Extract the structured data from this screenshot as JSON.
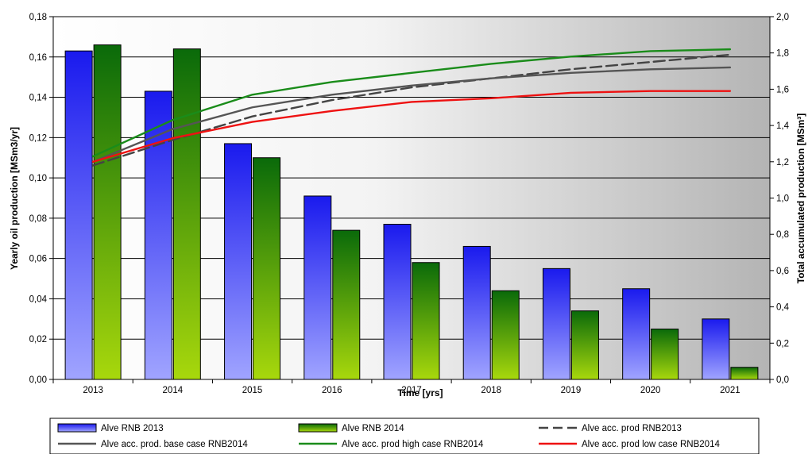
{
  "chart_data": {
    "type": "bar",
    "title": "",
    "xlabel": "Time [yrs]",
    "ylabel": "Yearly oil production [MSm3/yr]",
    "y2label": "Total accumulated production [MSm³]",
    "categories": [
      "2013",
      "2014",
      "2015",
      "2016",
      "2017",
      "2018",
      "2019",
      "2020",
      "2021"
    ],
    "ylim": [
      0,
      0.18
    ],
    "y2lim": [
      0,
      2.0
    ],
    "yticks": [
      "0,00",
      "0,02",
      "0,04",
      "0,06",
      "0,08",
      "0,10",
      "0,12",
      "0,14",
      "0,16",
      "0,18"
    ],
    "y2ticks": [
      "0,0",
      "0,2",
      "0,4",
      "0,6",
      "0,8",
      "1,0",
      "1,2",
      "1,4",
      "1,6",
      "1,8",
      "2,0"
    ],
    "grid": true,
    "legend_position": "bottom",
    "bar_series": [
      {
        "name": "Alve RNB 2013",
        "axis": "left",
        "values": [
          0.163,
          0.143,
          0.117,
          0.091,
          0.077,
          0.066,
          0.055,
          0.045,
          0.03
        ],
        "color_top": "#1a1aee",
        "color_bottom": "#a0a4ff"
      },
      {
        "name": "Alve RNB 2014",
        "axis": "left",
        "values": [
          0.166,
          0.164,
          0.11,
          0.074,
          0.058,
          0.044,
          0.034,
          0.025,
          0.006
        ],
        "color_top": "#0a6a0a",
        "color_bottom": "#a8d80c"
      }
    ],
    "line_series": [
      {
        "name": "Alve acc. prod RNB2013",
        "axis": "right",
        "values": [
          1.18,
          1.32,
          1.45,
          1.54,
          1.61,
          1.66,
          1.71,
          1.75,
          1.79
        ],
        "color": "#444444",
        "dashed": true
      },
      {
        "name": "Alve acc. prod. base case RNB2014",
        "axis": "right",
        "values": [
          1.2,
          1.38,
          1.5,
          1.57,
          1.62,
          1.66,
          1.69,
          1.71,
          1.72
        ],
        "color": "#555555",
        "dashed": false
      },
      {
        "name": "Alve acc. prod high case RNB2014",
        "axis": "right",
        "values": [
          1.23,
          1.43,
          1.57,
          1.64,
          1.69,
          1.74,
          1.78,
          1.81,
          1.82
        ],
        "color": "#1a8c1a",
        "dashed": false
      },
      {
        "name": "Alve acc. prod low case RNB2014",
        "axis": "right",
        "values": [
          1.2,
          1.33,
          1.42,
          1.48,
          1.53,
          1.55,
          1.58,
          1.59,
          1.59
        ],
        "color": "#ee1111",
        "dashed": false
      }
    ],
    "legend_order": [
      0,
      1,
      2,
      3,
      4,
      5
    ]
  }
}
